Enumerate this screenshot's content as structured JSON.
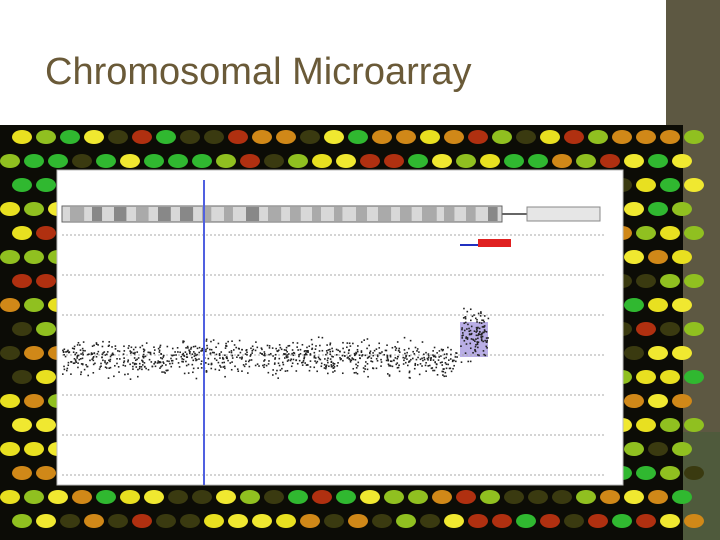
{
  "slide": {
    "title": "Chromosomal Microarray"
  }
}
